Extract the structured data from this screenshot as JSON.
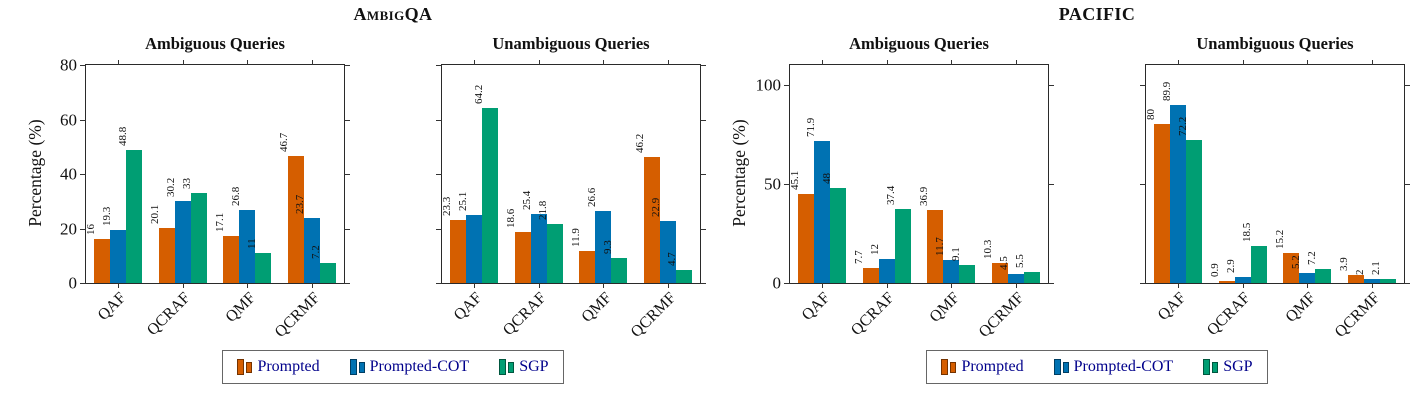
{
  "figure": {
    "groups": [
      {
        "title": "AmbigQA"
      },
      {
        "title": "PACIFIC"
      }
    ],
    "ylabel": "Percentage (%)"
  },
  "legend": {
    "text_color": "#00008B",
    "items": [
      {
        "label": "Prompted",
        "color": "#D55E00"
      },
      {
        "label": "Prompted-COT",
        "color": "#0072B2"
      },
      {
        "label": "SGP",
        "color": "#009E73"
      }
    ]
  },
  "chart_data": [
    {
      "type": "bar",
      "group": "AmbigQA",
      "title": "Ambiguous Queries",
      "xlabel": "",
      "ylabel": "Percentage (%)",
      "categories": [
        "QAF",
        "QCRAF",
        "QMF",
        "QCRMF"
      ],
      "series": [
        {
          "name": "Prompted",
          "values": [
            16,
            20.1,
            17.1,
            46.7
          ]
        },
        {
          "name": "Prompted-COT",
          "values": [
            19.3,
            30.2,
            26.8,
            23.7
          ]
        },
        {
          "name": "SGP",
          "values": [
            48.8,
            33,
            11,
            7.2
          ]
        }
      ],
      "ylim": [
        0,
        80
      ],
      "yticks": [
        0,
        20,
        40,
        60,
        80
      ],
      "show_ytick_labels": true,
      "grid": false,
      "bar_value_labels": true,
      "legend_position": "below"
    },
    {
      "type": "bar",
      "group": "AmbigQA",
      "title": "Unambiguous Queries",
      "xlabel": "",
      "ylabel": "Percentage (%)",
      "categories": [
        "QAF",
        "QCRAF",
        "QMF",
        "QCRMF"
      ],
      "series": [
        {
          "name": "Prompted",
          "values": [
            23.3,
            18.6,
            11.9,
            46.2
          ]
        },
        {
          "name": "Prompted-COT",
          "values": [
            25.1,
            25.4,
            26.6,
            22.9
          ]
        },
        {
          "name": "SGP",
          "values": [
            64.2,
            21.8,
            9.3,
            4.7
          ]
        }
      ],
      "ylim": [
        0,
        80
      ],
      "yticks": [
        0,
        20,
        40,
        60,
        80
      ],
      "show_ytick_labels": false,
      "grid": false,
      "bar_value_labels": true,
      "legend_position": "below"
    },
    {
      "type": "bar",
      "group": "PACIFIC",
      "title": "Ambiguous Queries",
      "xlabel": "",
      "ylabel": "Percentage (%)",
      "categories": [
        "QAF",
        "QCRAF",
        "QMF",
        "QCRMF"
      ],
      "series": [
        {
          "name": "Prompted",
          "values": [
            45.1,
            7.7,
            36.9,
            10.3
          ]
        },
        {
          "name": "Prompted-COT",
          "values": [
            71.9,
            12,
            11.7,
            4.5
          ]
        },
        {
          "name": "SGP",
          "values": [
            48,
            37.4,
            9.1,
            5.5
          ]
        }
      ],
      "ylim": [
        0,
        110
      ],
      "yticks": [
        0,
        50,
        100
      ],
      "show_ytick_labels": true,
      "grid": false,
      "bar_value_labels": true,
      "legend_position": "below"
    },
    {
      "type": "bar",
      "group": "PACIFIC",
      "title": "Unambiguous Queries",
      "xlabel": "",
      "ylabel": "Percentage (%)",
      "categories": [
        "QAF",
        "QCRAF",
        "QMF",
        "QCRMF"
      ],
      "series": [
        {
          "name": "Prompted",
          "values": [
            80,
            0.9,
            15.2,
            3.9
          ]
        },
        {
          "name": "Prompted-COT",
          "values": [
            89.9,
            2.9,
            5.2,
            2
          ]
        },
        {
          "name": "SGP",
          "values": [
            72.2,
            18.5,
            7.2,
            2.1
          ]
        }
      ],
      "ylim": [
        0,
        110
      ],
      "yticks": [
        0,
        50,
        100
      ],
      "show_ytick_labels": false,
      "grid": false,
      "bar_value_labels": true,
      "legend_position": "below"
    }
  ]
}
